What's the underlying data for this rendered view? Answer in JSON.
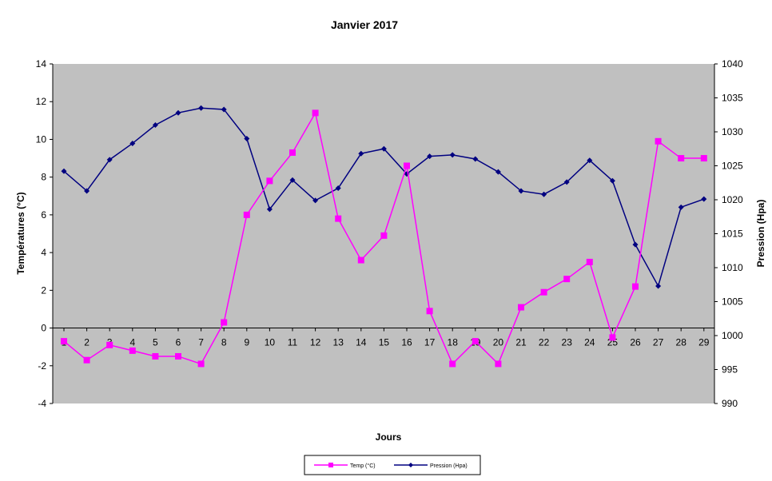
{
  "chart_data": {
    "type": "line",
    "title": "Janvier 2017",
    "xlabel": "Jours",
    "ylabel_left": "Températures (°C)",
    "ylabel_right": "Pression (Hpa)",
    "x": [
      1,
      2,
      3,
      4,
      5,
      6,
      7,
      8,
      9,
      10,
      11,
      12,
      13,
      14,
      15,
      16,
      17,
      18,
      19,
      20,
      21,
      22,
      23,
      24,
      25,
      26,
      27,
      28,
      29
    ],
    "y_left_lim": [
      -4,
      14
    ],
    "y_left_ticks": [
      -4,
      -2,
      0,
      2,
      4,
      6,
      8,
      10,
      12,
      14
    ],
    "y_right_lim": [
      990,
      1040
    ],
    "y_right_ticks": [
      990,
      995,
      1000,
      1005,
      1010,
      1015,
      1020,
      1025,
      1030,
      1035,
      1040
    ],
    "plot_background": "#c0c0c0",
    "grid": false,
    "legend_position": "bottom",
    "series": [
      {
        "name": "Temp (°C)",
        "axis": "left",
        "color": "#ff00ff",
        "marker": "square",
        "values": [
          -0.7,
          -1.7,
          -0.9,
          -1.2,
          -1.5,
          -1.5,
          -1.9,
          0.3,
          6.0,
          7.8,
          9.3,
          11.4,
          5.8,
          3.6,
          4.9,
          8.6,
          0.9,
          -1.9,
          -0.7,
          -1.9,
          1.1,
          1.9,
          2.6,
          3.5,
          -0.5,
          2.2,
          9.9,
          9.0,
          9.0
        ]
      },
      {
        "name": "Pression (Hpa)",
        "axis": "right",
        "color": "#000080",
        "marker": "diamond",
        "values": [
          1024.2,
          1021.3,
          1025.9,
          1028.3,
          1031.0,
          1032.8,
          1033.5,
          1033.3,
          1029.0,
          1018.6,
          1022.9,
          1019.9,
          1021.7,
          1026.8,
          1027.5,
          1023.8,
          1026.4,
          1026.6,
          1026.0,
          1024.1,
          1021.3,
          1020.8,
          1022.6,
          1025.8,
          1022.8,
          1013.4,
          1007.3,
          1018.9,
          1020.1
        ]
      }
    ]
  }
}
